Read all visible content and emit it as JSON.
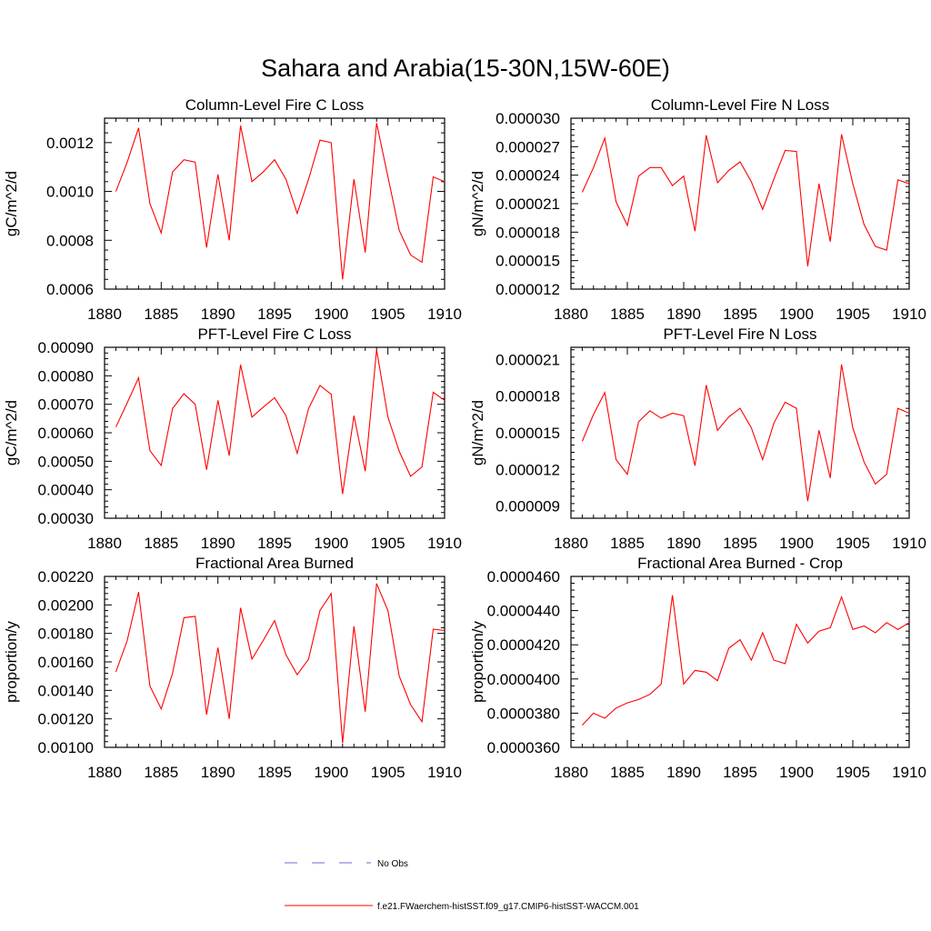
{
  "figure": {
    "title": "Sahara and Arabia(15-30N,15W-60E)",
    "legend": [
      {
        "label": "No Obs",
        "color": "#6b6bd6",
        "style": "dashed"
      },
      {
        "label": "f.e21.FWaerchem-histSST.f09_g17.CMIP6-histSST-WACCM.001",
        "color": "#ff0000",
        "style": "solid"
      }
    ]
  },
  "chart_data": [
    {
      "type": "line",
      "title": "Column-Level Fire C Loss",
      "ylabel": "gC/m^2/d",
      "xlim": [
        1880,
        1910
      ],
      "ylim": [
        0.0006,
        0.0013
      ],
      "xticks": [
        "1880",
        "1885",
        "1890",
        "1895",
        "1900",
        "1905",
        "1910"
      ],
      "yticks": [
        "0.0006",
        "0.0008",
        "0.0010",
        "0.0012"
      ],
      "ytick_values": [
        0.0006,
        0.0008,
        0.001,
        0.0012
      ],
      "series": [
        {
          "color": "#ff0000",
          "x": [
            1881,
            1882,
            1883,
            1884,
            1885,
            1886,
            1887,
            1888,
            1889,
            1890,
            1891,
            1892,
            1893,
            1894,
            1895,
            1896,
            1897,
            1898,
            1899,
            1900,
            1901,
            1902,
            1903,
            1904,
            1905,
            1906,
            1907,
            1908,
            1909,
            1910
          ],
          "y": [
            0.001,
            0.00112,
            0.00126,
            0.00095,
            0.00083,
            0.00108,
            0.00113,
            0.00112,
            0.00077,
            0.00107,
            0.0008,
            0.00127,
            0.00104,
            0.00108,
            0.00113,
            0.00105,
            0.00091,
            0.00105,
            0.00121,
            0.0012,
            0.00064,
            0.00105,
            0.00075,
            0.00128,
            0.00106,
            0.00084,
            0.00074,
            0.00071,
            0.00106,
            0.00104
          ]
        }
      ]
    },
    {
      "type": "line",
      "title": "Column-Level Fire N Loss",
      "ylabel": "gN/m^2/d",
      "xlim": [
        1880,
        1910
      ],
      "ylim": [
        1.2e-05,
        3e-05
      ],
      "xticks": [
        "1880",
        "1885",
        "1890",
        "1895",
        "1900",
        "1905",
        "1910"
      ],
      "yticks": [
        "0.000012",
        "0.000015",
        "0.000018",
        "0.000021",
        "0.000024",
        "0.000027",
        "0.000030"
      ],
      "ytick_values": [
        1.2e-05,
        1.5e-05,
        1.8e-05,
        2.1e-05,
        2.4e-05,
        2.7e-05,
        3e-05
      ],
      "series": [
        {
          "color": "#ff0000",
          "x": [
            1881,
            1882,
            1883,
            1884,
            1885,
            1886,
            1887,
            1888,
            1889,
            1890,
            1891,
            1892,
            1893,
            1894,
            1895,
            1896,
            1897,
            1898,
            1899,
            1900,
            1901,
            1902,
            1903,
            1904,
            1905,
            1906,
            1907,
            1908,
            1909,
            1910
          ],
          "y": [
            2.22e-05,
            2.48e-05,
            2.79e-05,
            2.12e-05,
            1.87e-05,
            2.39e-05,
            2.48e-05,
            2.48e-05,
            2.29e-05,
            2.39e-05,
            1.81e-05,
            2.82e-05,
            2.32e-05,
            2.45e-05,
            2.54e-05,
            2.33e-05,
            2.04e-05,
            2.36e-05,
            2.66e-05,
            2.65e-05,
            1.44e-05,
            2.31e-05,
            1.7e-05,
            2.83e-05,
            2.31e-05,
            1.88e-05,
            1.65e-05,
            1.61e-05,
            2.35e-05,
            2.31e-05
          ]
        }
      ]
    },
    {
      "type": "line",
      "title": "PFT-Level Fire C Loss",
      "ylabel": "gC/m^2/d",
      "xlim": [
        1880,
        1910
      ],
      "ylim": [
        0.0003,
        0.0009
      ],
      "xticks": [
        "1880",
        "1885",
        "1890",
        "1895",
        "1900",
        "1905",
        "1910"
      ],
      "yticks": [
        "0.00030",
        "0.00040",
        "0.00050",
        "0.00060",
        "0.00070",
        "0.00080",
        "0.00090"
      ],
      "ytick_values": [
        0.0003,
        0.0004,
        0.0005,
        0.0006,
        0.0007,
        0.0008,
        0.0009
      ],
      "series": [
        {
          "color": "#ff0000",
          "x": [
            1881,
            1882,
            1883,
            1884,
            1885,
            1886,
            1887,
            1888,
            1889,
            1890,
            1891,
            1892,
            1893,
            1894,
            1895,
            1896,
            1897,
            1898,
            1899,
            1900,
            1901,
            1902,
            1903,
            1904,
            1905,
            1906,
            1907,
            1908,
            1909,
            1910
          ],
          "y": [
            0.00062,
            0.000705,
            0.000793,
            0.000537,
            0.000485,
            0.000685,
            0.000737,
            0.0007,
            0.00047,
            0.000714,
            0.00052,
            0.000839,
            0.000655,
            0.00069,
            0.000723,
            0.00066,
            0.000528,
            0.000685,
            0.000766,
            0.000735,
            0.000385,
            0.00066,
            0.000465,
            0.000892,
            0.000655,
            0.000535,
            0.000447,
            0.00048,
            0.000742,
            0.000714
          ]
        }
      ]
    },
    {
      "type": "line",
      "title": "PFT-Level Fire N Loss",
      "ylabel": "gN/m^2/d",
      "xlim": [
        1880,
        1910
      ],
      "ylim": [
        8e-06,
        2.2e-05
      ],
      "xticks": [
        "1880",
        "1885",
        "1890",
        "1895",
        "1900",
        "1905",
        "1910"
      ],
      "yticks": [
        "0.000009",
        "0.000012",
        "0.000015",
        "0.000018",
        "0.000021"
      ],
      "ytick_values": [
        9e-06,
        1.2e-05,
        1.5e-05,
        1.8e-05,
        2.1e-05
      ],
      "series": [
        {
          "color": "#ff0000",
          "x": [
            1881,
            1882,
            1883,
            1884,
            1885,
            1886,
            1887,
            1888,
            1889,
            1890,
            1891,
            1892,
            1893,
            1894,
            1895,
            1896,
            1897,
            1898,
            1899,
            1900,
            1901,
            1902,
            1903,
            1904,
            1905,
            1906,
            1907,
            1908,
            1909,
            1910
          ],
          "y": [
            1.43e-05,
            1.65e-05,
            1.83e-05,
            1.28e-05,
            1.16e-05,
            1.59e-05,
            1.68e-05,
            1.62e-05,
            1.66e-05,
            1.64e-05,
            1.23e-05,
            1.89e-05,
            1.52e-05,
            1.63e-05,
            1.7e-05,
            1.54e-05,
            1.28e-05,
            1.58e-05,
            1.75e-05,
            1.7e-05,
            9.4e-06,
            1.52e-05,
            1.13e-05,
            2.06e-05,
            1.54e-05,
            1.26e-05,
            1.08e-05,
            1.16e-05,
            1.7e-05,
            1.66e-05
          ]
        }
      ]
    },
    {
      "type": "line",
      "title": "Fractional Area Burned",
      "ylabel": "proportion/y",
      "xlim": [
        1880,
        1910
      ],
      "ylim": [
        0.001,
        0.0022
      ],
      "xticks": [
        "1880",
        "1885",
        "1890",
        "1895",
        "1900",
        "1905",
        "1910"
      ],
      "yticks": [
        "0.00100",
        "0.00120",
        "0.00140",
        "0.00160",
        "0.00180",
        "0.00200",
        "0.00220"
      ],
      "ytick_values": [
        0.001,
        0.0012,
        0.0014,
        0.0016,
        0.0018,
        0.002,
        0.0022
      ],
      "series": [
        {
          "color": "#ff0000",
          "x": [
            1881,
            1882,
            1883,
            1884,
            1885,
            1886,
            1887,
            1888,
            1889,
            1890,
            1891,
            1892,
            1893,
            1894,
            1895,
            1896,
            1897,
            1898,
            1899,
            1900,
            1901,
            1902,
            1903,
            1904,
            1905,
            1906,
            1907,
            1908,
            1909,
            1910
          ],
          "y": [
            0.00153,
            0.00175,
            0.00209,
            0.00143,
            0.00127,
            0.00152,
            0.00191,
            0.00192,
            0.00123,
            0.0017,
            0.0012,
            0.00198,
            0.00162,
            0.00175,
            0.00189,
            0.00165,
            0.00151,
            0.00162,
            0.00196,
            0.00208,
            0.00103,
            0.00185,
            0.00125,
            0.00215,
            0.00196,
            0.0015,
            0.0013,
            0.00118,
            0.00183,
            0.00182
          ]
        }
      ]
    },
    {
      "type": "line",
      "title": "Fractional Area Burned - Crop",
      "ylabel": "proportion/y",
      "xlim": [
        1880,
        1910
      ],
      "ylim": [
        3.6e-05,
        4.6e-05
      ],
      "xticks": [
        "1880",
        "1885",
        "1890",
        "1895",
        "1900",
        "1905",
        "1910"
      ],
      "yticks": [
        "0.0000360",
        "0.0000380",
        "0.0000400",
        "0.0000420",
        "0.0000440",
        "0.0000460"
      ],
      "ytick_values": [
        3.6e-05,
        3.8e-05,
        4e-05,
        4.2e-05,
        4.4e-05,
        4.6e-05
      ],
      "series": [
        {
          "color": "#ff0000",
          "x": [
            1881,
            1882,
            1883,
            1884,
            1885,
            1886,
            1887,
            1888,
            1889,
            1890,
            1891,
            1892,
            1893,
            1894,
            1895,
            1896,
            1897,
            1898,
            1899,
            1900,
            1901,
            1902,
            1903,
            1904,
            1905,
            1906,
            1907,
            1908,
            1909,
            1910
          ],
          "y": [
            3.73e-05,
            3.8e-05,
            3.77e-05,
            3.83e-05,
            3.86e-05,
            3.88e-05,
            3.91e-05,
            3.97e-05,
            4.49e-05,
            3.97e-05,
            4.05e-05,
            4.04e-05,
            3.99e-05,
            4.18e-05,
            4.23e-05,
            4.11e-05,
            4.27e-05,
            4.11e-05,
            4.09e-05,
            4.32e-05,
            4.21e-05,
            4.28e-05,
            4.3e-05,
            4.48e-05,
            4.29e-05,
            4.31e-05,
            4.27e-05,
            4.33e-05,
            4.29e-05,
            4.33e-05
          ]
        }
      ]
    }
  ]
}
